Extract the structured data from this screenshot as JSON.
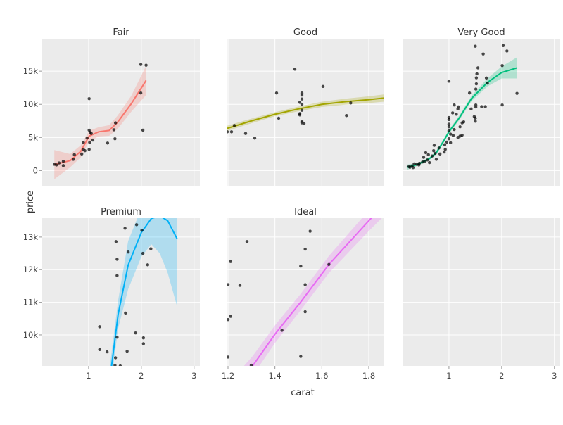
{
  "chart_data": {
    "type": "scatter",
    "xlabel": "carat",
    "ylabel": "price",
    "grid": true,
    "background": "#EBEBEB",
    "point_color": "#000000",
    "rows": [
      {
        "ylim": [
          -2400,
          19900
        ],
        "yticks": [
          0,
          5000,
          10000,
          15000
        ],
        "ytick_labels": [
          "0",
          "5k",
          "10k",
          "15k"
        ]
      },
      {
        "ylim": [
          9050,
          13580
        ],
        "yticks": [
          10000,
          11000,
          12000,
          13000
        ],
        "ytick_labels": [
          "10k",
          "11k",
          "12k",
          "13k"
        ]
      }
    ],
    "xaxes": {
      "wide": {
        "xlim": [
          0.12,
          3.11
        ],
        "xticks": [
          1,
          2,
          3
        ],
        "xtick_labels": [
          "1",
          "2",
          "3"
        ]
      },
      "narrow": {
        "xlim": [
          1.194,
          1.866
        ],
        "xticks": [
          1.2,
          1.4,
          1.6,
          1.8
        ],
        "xtick_labels": [
          "1.2",
          "1.4",
          "1.6",
          "1.8"
        ]
      }
    },
    "facets": [
      {
        "title": "Fair",
        "row": 0,
        "col": 0,
        "xaxis": "wide",
        "color": "#F8766D",
        "points": [
          [
            0.35,
            950
          ],
          [
            0.39,
            850
          ],
          [
            0.44,
            1150
          ],
          [
            0.52,
            1400
          ],
          [
            0.52,
            750
          ],
          [
            0.71,
            1700
          ],
          [
            0.73,
            2400
          ],
          [
            0.87,
            2500
          ],
          [
            0.9,
            4250
          ],
          [
            0.9,
            3200
          ],
          [
            0.93,
            3000
          ],
          [
            0.97,
            4900
          ],
          [
            1.01,
            10850
          ],
          [
            1.01,
            6100
          ],
          [
            1.03,
            5800
          ],
          [
            1.05,
            5600
          ],
          [
            1.02,
            4250
          ],
          [
            1.01,
            3200
          ],
          [
            1.08,
            4600
          ],
          [
            1.36,
            4150
          ],
          [
            1.48,
            6150
          ],
          [
            1.51,
            7200
          ],
          [
            1.5,
            4800
          ],
          [
            1.99,
            16000
          ],
          [
            2.09,
            15900
          ],
          [
            1.99,
            11700
          ],
          [
            2.03,
            6100
          ]
        ],
        "smooth": {
          "x": [
            0.35,
            0.65,
            0.85,
            1.01,
            1.19,
            1.39,
            1.55,
            1.81,
            2.09
          ],
          "fit": [
            900,
            1500,
            2900,
            5200,
            5850,
            6050,
            7300,
            10100,
            13600
          ],
          "lower": [
            -1300,
            500,
            2000,
            4400,
            5150,
            5250,
            6300,
            8900,
            11400
          ],
          "upper": [
            3100,
            2500,
            3800,
            6000,
            6550,
            6850,
            8300,
            11300,
            15800
          ]
        }
      },
      {
        "title": "Good",
        "row": 0,
        "col": 1,
        "xaxis": "narrow",
        "color": "#A3A500",
        "points": [
          [
            1.197,
            5850
          ],
          [
            1.215,
            5850
          ],
          [
            1.227,
            6800
          ],
          [
            1.275,
            5600
          ],
          [
            1.314,
            4900
          ],
          [
            1.407,
            11700
          ],
          [
            1.416,
            7900
          ],
          [
            1.485,
            15300
          ],
          [
            1.515,
            11700
          ],
          [
            1.515,
            11400
          ],
          [
            1.515,
            10800
          ],
          [
            1.506,
            10300
          ],
          [
            1.515,
            10000
          ],
          [
            1.515,
            9100
          ],
          [
            1.506,
            8600
          ],
          [
            1.506,
            8400
          ],
          [
            1.515,
            7450
          ],
          [
            1.515,
            7200
          ],
          [
            1.524,
            7100
          ],
          [
            1.605,
            12700
          ],
          [
            1.705,
            8300
          ],
          [
            1.723,
            10200
          ]
        ],
        "smooth": {
          "x": [
            1.19,
            1.3,
            1.4,
            1.5,
            1.6,
            1.7,
            1.8,
            1.866
          ],
          "fit": [
            6300,
            7500,
            8500,
            9300,
            10000,
            10400,
            10700,
            10950
          ],
          "lower": [
            5900,
            7150,
            8200,
            8950,
            9600,
            9950,
            10200,
            10400
          ],
          "upper": [
            6700,
            7850,
            8800,
            9650,
            10400,
            10850,
            11200,
            11500
          ]
        }
      },
      {
        "title": "Very Good",
        "row": 0,
        "col": 2,
        "xaxis": "wide",
        "color": "#00BF7D",
        "points": [
          [
            1.5,
            18760
          ],
          [
            2.03,
            18860
          ],
          [
            2.1,
            18050
          ],
          [
            1.65,
            17600
          ],
          [
            1.55,
            15500
          ],
          [
            2.01,
            15850
          ],
          [
            1.53,
            14600
          ],
          [
            1.52,
            14000
          ],
          [
            1.71,
            13970
          ],
          [
            1.73,
            13200
          ],
          [
            1.52,
            13100
          ],
          [
            1.51,
            12300
          ],
          [
            1.0,
            13500
          ],
          [
            1.39,
            11700
          ],
          [
            2.29,
            11650
          ],
          [
            2.01,
            9900
          ],
          [
            1.51,
            9900
          ],
          [
            1.51,
            9600
          ],
          [
            1.62,
            9650
          ],
          [
            1.69,
            9650
          ],
          [
            1.42,
            9300
          ],
          [
            1.1,
            9900
          ],
          [
            1.18,
            9600
          ],
          [
            1.17,
            9300
          ],
          [
            1.07,
            8700
          ],
          [
            1.14,
            8500
          ],
          [
            1.0,
            8000
          ],
          [
            1.0,
            7700
          ],
          [
            1.48,
            8150
          ],
          [
            1.5,
            7900
          ],
          [
            1.5,
            7450
          ],
          [
            1.28,
            7350
          ],
          [
            1.25,
            7200
          ],
          [
            1.0,
            7000
          ],
          [
            1.0,
            6600
          ],
          [
            1.21,
            6600
          ],
          [
            1.1,
            6200
          ],
          [
            1.0,
            6000
          ],
          [
            1.03,
            5500
          ],
          [
            1.08,
            5300
          ],
          [
            1.17,
            5000
          ],
          [
            1.21,
            5200
          ],
          [
            1.25,
            5350
          ],
          [
            1.0,
            4800
          ],
          [
            0.96,
            4300
          ],
          [
            1.03,
            4200
          ],
          [
            0.92,
            3900
          ],
          [
            0.93,
            3200
          ],
          [
            0.91,
            2800
          ],
          [
            0.81,
            3400
          ],
          [
            0.72,
            3800
          ],
          [
            0.71,
            3000
          ],
          [
            0.74,
            2600
          ],
          [
            0.76,
            1700
          ],
          [
            0.68,
            2200
          ],
          [
            0.61,
            2400
          ],
          [
            0.56,
            2700
          ],
          [
            0.52,
            2000
          ],
          [
            0.59,
            1600
          ],
          [
            0.5,
            1300
          ],
          [
            0.44,
            1100
          ],
          [
            0.39,
            950
          ],
          [
            0.34,
            1000
          ],
          [
            0.3,
            700
          ],
          [
            0.26,
            500
          ],
          [
            0.24,
            600
          ],
          [
            0.32,
            450
          ],
          [
            0.43,
            850
          ],
          [
            0.54,
            1400
          ],
          [
            0.63,
            1200
          ],
          [
            0.83,
            2500
          ]
        ],
        "smooth": {
          "x": [
            0.2,
            0.4,
            0.63,
            0.76,
            0.88,
            1.0,
            1.2,
            1.43,
            1.73,
            2.0,
            2.29
          ],
          "fit": [
            500,
            900,
            1800,
            2700,
            4200,
            5850,
            8000,
            10900,
            13300,
            14800,
            15500
          ],
          "lower": [
            100,
            700,
            1600,
            2450,
            3900,
            5550,
            7650,
            10500,
            12700,
            13900,
            13900
          ],
          "upper": [
            900,
            1100,
            2000,
            2950,
            4500,
            6150,
            8350,
            11300,
            13900,
            15700,
            17100
          ]
        }
      },
      {
        "title": "Premium",
        "row": 1,
        "col": 0,
        "xaxis": "wide",
        "color": "#00B0F6",
        "points": [
          [
            1.69,
            13270
          ],
          [
            1.91,
            13380
          ],
          [
            2.01,
            13210
          ],
          [
            1.52,
            12860
          ],
          [
            1.75,
            12540
          ],
          [
            2.03,
            12500
          ],
          [
            2.18,
            12640
          ],
          [
            1.54,
            12320
          ],
          [
            2.12,
            12150
          ],
          [
            1.54,
            11820
          ],
          [
            1.7,
            10670
          ],
          [
            1.21,
            10250
          ],
          [
            1.89,
            10060
          ],
          [
            1.54,
            9930
          ],
          [
            2.04,
            9910
          ],
          [
            2.04,
            9730
          ],
          [
            1.21,
            9550
          ],
          [
            1.35,
            9480
          ],
          [
            1.73,
            9500
          ],
          [
            1.51,
            9300
          ],
          [
            1.5,
            9070
          ],
          [
            1.6,
            9050
          ]
        ],
        "smooth": {
          "x": [
            1.4,
            1.56,
            1.75,
            2.0,
            2.19,
            2.35,
            2.5,
            2.68
          ],
          "fit": [
            8600,
            10630,
            12140,
            13140,
            13570,
            13650,
            13500,
            12940
          ],
          "lower": [
            8200,
            10200,
            11400,
            12400,
            12780,
            12500,
            11900,
            10860
          ],
          "upper": [
            9000,
            11060,
            12880,
            13880,
            14360,
            14800,
            15100,
            15020
          ]
        }
      },
      {
        "title": "Ideal",
        "row": 1,
        "col": 1,
        "xaxis": "narrow",
        "color": "#E76BF3",
        "points": [
          [
            1.281,
            12860
          ],
          [
            1.211,
            12250
          ],
          [
            1.2,
            11540
          ],
          [
            1.251,
            11520
          ],
          [
            1.186,
            11420
          ],
          [
            1.211,
            10570
          ],
          [
            1.2,
            10470
          ],
          [
            1.2,
            9320
          ],
          [
            1.55,
            13180
          ],
          [
            1.529,
            12630
          ],
          [
            1.51,
            12110
          ],
          [
            1.63,
            12160
          ],
          [
            1.529,
            11540
          ],
          [
            1.529,
            10710
          ],
          [
            1.43,
            10140
          ],
          [
            1.51,
            9340
          ],
          [
            1.299,
            9070
          ]
        ],
        "smooth": {
          "x": [
            1.25,
            1.305,
            1.4,
            1.509,
            1.63,
            1.809,
            1.9
          ],
          "fit": [
            8500,
            9050,
            10020,
            11000,
            12160,
            13570,
            14300
          ],
          "lower": [
            8100,
            8750,
            9750,
            10750,
            11900,
            13250,
            13900
          ],
          "upper": [
            8900,
            9350,
            10290,
            11250,
            12420,
            13890,
            14700
          ]
        }
      },
      {
        "title": "",
        "row": 1,
        "col": 2,
        "xaxis": "wide",
        "color": "",
        "points": [],
        "smooth": null
      }
    ]
  }
}
